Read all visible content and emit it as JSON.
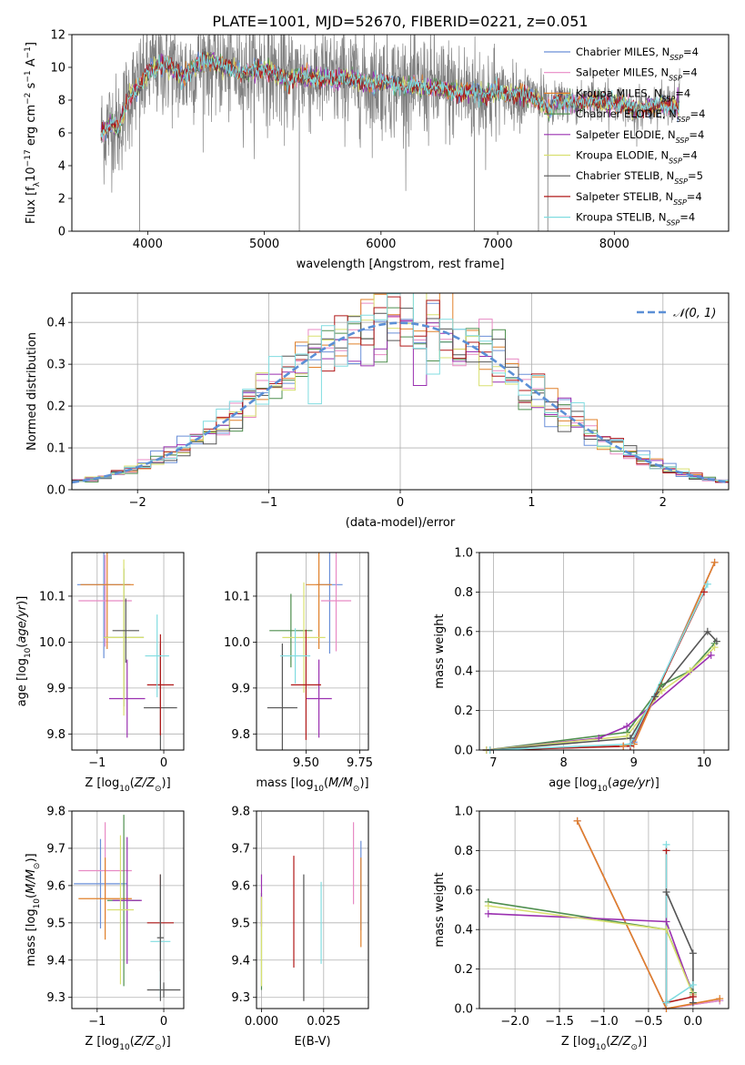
{
  "figure_title": "PLATE=1001, MJD=52670, FIBERID=0221, z=0.051",
  "colors": {
    "chabrier_miles": "#6a8fd8",
    "salpeter_miles": "#e88ac4",
    "kroupa_miles": "#e0802a",
    "chabrier_elodie": "#4f8f4f",
    "salpeter_elodie": "#9a30b0",
    "kroupa_elodie": "#d8e070",
    "chabrier_stelib": "#555555",
    "salpeter_stelib": "#b01818",
    "kroupa_stelib": "#80dce0",
    "data": "#808080",
    "gaussian": "#5b8fd6"
  },
  "chart_data": [
    {
      "id": "spectrum",
      "type": "line",
      "xlabel": "wavelength [Angstrom, rest frame]",
      "ylabel": "Flux [f_λ10^-17 erg cm^-2 s^-1 A^-1]",
      "xlim": [
        3350,
        8980
      ],
      "ylim": [
        0,
        12
      ],
      "xticks": [
        4000,
        5000,
        6000,
        7000,
        8000
      ],
      "yticks": [
        0,
        2,
        4,
        6,
        8,
        10,
        12
      ],
      "grid": false,
      "legend_position": "right",
      "legend": [
        {
          "label": "Chabrier MILES, N_SSP=4",
          "color_key": "chabrier_miles"
        },
        {
          "label": "Salpeter MILES, N_SSP=4",
          "color_key": "salpeter_miles"
        },
        {
          "label": "Kroupa MILES, N_SSP=4",
          "color_key": "kroupa_miles"
        },
        {
          "label": "Chabrier ELODIE, N_SSP=4",
          "color_key": "chabrier_elodie"
        },
        {
          "label": "Salpeter ELODIE, N_SSP=4",
          "color_key": "salpeter_elodie"
        },
        {
          "label": "Kroupa ELODIE, N_SSP=4",
          "color_key": "kroupa_elodie"
        },
        {
          "label": "Chabrier STELIB, N_SSP=5",
          "color_key": "chabrier_stelib"
        },
        {
          "label": "Salpeter STELIB, N_SSP=4",
          "color_key": "salpeter_stelib"
        },
        {
          "label": "Kroupa STELIB, N_SSP=4",
          "color_key": "kroupa_stelib"
        }
      ],
      "model_continuum": [
        [
          3600,
          6.0
        ],
        [
          3650,
          6.3
        ],
        [
          3700,
          6.6
        ],
        [
          3750,
          6.2
        ],
        [
          3800,
          7.4
        ],
        [
          3850,
          8.4
        ],
        [
          3900,
          8.6
        ],
        [
          3950,
          9.0
        ],
        [
          4000,
          9.6
        ],
        [
          4100,
          10.2
        ],
        [
          4200,
          10.0
        ],
        [
          4300,
          9.4
        ],
        [
          4400,
          10.0
        ],
        [
          4500,
          10.5
        ],
        [
          4600,
          10.2
        ],
        [
          4700,
          9.9
        ],
        [
          4800,
          9.7
        ],
        [
          4900,
          9.8
        ],
        [
          5000,
          10.0
        ],
        [
          5100,
          9.6
        ],
        [
          5200,
          9.2
        ],
        [
          5300,
          9.5
        ],
        [
          5400,
          9.3
        ],
        [
          5500,
          9.4
        ],
        [
          5600,
          9.2
        ],
        [
          5700,
          9.4
        ],
        [
          5800,
          9.2
        ],
        [
          5900,
          9.0
        ],
        [
          6000,
          9.1
        ],
        [
          6100,
          9.0
        ],
        [
          6200,
          8.9
        ],
        [
          6300,
          8.8
        ],
        [
          6400,
          8.8
        ],
        [
          6500,
          8.7
        ],
        [
          6600,
          8.6
        ],
        [
          6700,
          8.5
        ],
        [
          6800,
          8.5
        ],
        [
          6900,
          8.3
        ],
        [
          7000,
          8.5
        ],
        [
          7100,
          8.4
        ],
        [
          7200,
          8.3
        ],
        [
          7300,
          8.2
        ],
        [
          7400,
          7.7
        ],
        [
          7450,
          7.3
        ],
        [
          7500,
          8.0
        ],
        [
          7600,
          7.9
        ],
        [
          7700,
          7.8
        ],
        [
          7800,
          8.1
        ],
        [
          7900,
          7.8
        ],
        [
          8000,
          7.8
        ],
        [
          8100,
          7.7
        ],
        [
          8200,
          7.4
        ],
        [
          8300,
          7.6
        ],
        [
          8400,
          7.6
        ],
        [
          8500,
          7.7
        ],
        [
          8560,
          7.6
        ]
      ],
      "data_dropouts": [
        [
          3930,
          0
        ],
        [
          5300,
          0
        ],
        [
          6800,
          0
        ],
        [
          7350,
          0
        ],
        [
          7430,
          0
        ]
      ]
    },
    {
      "id": "residuals",
      "type": "line",
      "xlabel": "(data-model)/error",
      "ylabel": "Normed distribution",
      "xlim": [
        -2.5,
        2.5
      ],
      "ylim": [
        0,
        0.47
      ],
      "xticks": [
        -2,
        -1,
        0,
        1,
        2
      ],
      "yticks": [
        0.0,
        0.1,
        0.2,
        0.3,
        0.4
      ],
      "grid": true,
      "legend_position": "top-right",
      "legend": [
        {
          "label": "𝒩(0, 1)",
          "color_key": "gaussian"
        }
      ],
      "histogram_bin_width": 0.1,
      "curve": "normal_pdf_mean0_std1"
    },
    {
      "id": "age_vs_Z",
      "type": "scatter",
      "xlabel": "Z [log10(Z/Z☉)]",
      "ylabel": "age  [log10(age/yr)]",
      "xlim": [
        -1.38,
        0.3
      ],
      "ylim": [
        9.765,
        10.195
      ],
      "xticks": [
        -1,
        0
      ],
      "yticks": [
        9.8,
        9.9,
        10.0,
        10.1
      ],
      "grid": true,
      "points": [
        {
          "key": "chabrier_miles",
          "x": -0.9,
          "y": 10.125,
          "dx": 0.4,
          "dy": 0.16
        },
        {
          "key": "salpeter_miles",
          "x": -0.88,
          "y": 10.09,
          "dx": 0.4,
          "dy": 0.1
        },
        {
          "key": "kroupa_miles",
          "x": -0.85,
          "y": 10.125,
          "dx": 0.4,
          "dy": 0.14
        },
        {
          "key": "chabrier_elodie",
          "x": -0.6,
          "y": 10.01,
          "dx": 0.3,
          "dy": 0.15
        },
        {
          "key": "salpeter_elodie",
          "x": -0.55,
          "y": 9.877,
          "dx": 0.27,
          "dy": 0.085
        },
        {
          "key": "kroupa_elodie",
          "x": -0.6,
          "y": 10.01,
          "dx": 0.3,
          "dy": 0.17
        },
        {
          "key": "chabrier_stelib",
          "x": -0.05,
          "y": 9.857,
          "dx": 0.25,
          "dy": 0.14
        },
        {
          "key": "salpeter_stelib",
          "x": -0.05,
          "y": 9.907,
          "dx": 0.2,
          "dy": 0.11
        },
        {
          "key": "kroupa_stelib",
          "x": -0.1,
          "y": 9.97,
          "dx": 0.18,
          "dy": 0.09
        },
        {
          "key": "chabrier_stelib",
          "x": -0.57,
          "y": 10.025,
          "dx": 0.2,
          "dy": 0.07
        }
      ]
    },
    {
      "id": "age_vs_mass",
      "type": "scatter",
      "xlabel": "mass [log10(M/M☉)]",
      "ylabel": "",
      "xlim": [
        9.27,
        9.79
      ],
      "ylim": [
        9.765,
        10.195
      ],
      "xticks": [
        9.5,
        9.75
      ],
      "yticks": [
        9.8,
        9.9,
        10.0,
        10.1
      ],
      "grid": true,
      "points": [
        {
          "key": "chabrier_miles",
          "x": 9.61,
          "y": 10.125,
          "dx": 0.06,
          "dy": 0.15
        },
        {
          "key": "salpeter_miles",
          "x": 9.64,
          "y": 10.09,
          "dx": 0.07,
          "dy": 0.11
        },
        {
          "key": "kroupa_miles",
          "x": 9.56,
          "y": 10.125,
          "dx": 0.06,
          "dy": 0.14
        },
        {
          "key": "chabrier_elodie",
          "x": 9.43,
          "y": 10.025,
          "dx": 0.1,
          "dy": 0.08
        },
        {
          "key": "salpeter_elodie",
          "x": 9.56,
          "y": 9.877,
          "dx": 0.06,
          "dy": 0.085
        },
        {
          "key": "kroupa_elodie",
          "x": 9.49,
          "y": 10.01,
          "dx": 0.1,
          "dy": 0.12
        },
        {
          "key": "chabrier_stelib",
          "x": 9.39,
          "y": 9.857,
          "dx": 0.07,
          "dy": 0.14
        },
        {
          "key": "salpeter_stelib",
          "x": 9.5,
          "y": 9.907,
          "dx": 0.07,
          "dy": 0.12
        },
        {
          "key": "kroupa_stelib",
          "x": 9.45,
          "y": 9.97,
          "dx": 0.07,
          "dy": 0.06
        }
      ]
    },
    {
      "id": "massweight_vs_age",
      "type": "line",
      "xlabel": "age  [log10(age/yr)]",
      "ylabel": "mass weight",
      "xlim": [
        6.8,
        10.35
      ],
      "ylim": [
        0,
        1
      ],
      "xticks": [
        7,
        8,
        9,
        10
      ],
      "yticks": [
        0.0,
        0.2,
        0.4,
        0.6,
        0.8,
        1.0
      ],
      "grid": true,
      "series": [
        {
          "key": "chabrier_miles",
          "x": [
            6.9,
            8.85,
            9.0,
            10.15
          ],
          "y": [
            0.0,
            0.02,
            0.04,
            0.95
          ]
        },
        {
          "key": "salpeter_miles",
          "x": [
            6.9,
            8.85,
            9.0,
            10.15
          ],
          "y": [
            0.0,
            0.02,
            0.03,
            0.95
          ]
        },
        {
          "key": "kroupa_miles",
          "x": [
            6.9,
            8.85,
            9.0,
            10.15
          ],
          "y": [
            0.0,
            0.02,
            0.03,
            0.95
          ]
        },
        {
          "key": "chabrier_elodie",
          "x": [
            6.9,
            8.9,
            9.4,
            9.8,
            10.15
          ],
          "y": [
            0.0,
            0.09,
            0.33,
            0.4,
            0.54
          ]
        },
        {
          "key": "salpeter_elodie",
          "x": [
            6.9,
            8.5,
            8.9,
            10.1
          ],
          "y": [
            0.0,
            0.06,
            0.12,
            0.48
          ]
        },
        {
          "key": "kroupa_elodie",
          "x": [
            6.9,
            8.9,
            9.4,
            9.8,
            10.15
          ],
          "y": [
            0.0,
            0.07,
            0.3,
            0.4,
            0.52
          ]
        },
        {
          "key": "chabrier_stelib",
          "x": [
            6.95,
            8.95,
            9.3,
            10.05,
            10.18
          ],
          "y": [
            0.0,
            0.06,
            0.27,
            0.6,
            0.55
          ]
        },
        {
          "key": "salpeter_stelib",
          "x": [
            6.95,
            8.95,
            10.0
          ],
          "y": [
            0.0,
            0.02,
            0.8
          ]
        },
        {
          "key": "kroupa_stelib",
          "x": [
            6.95,
            8.95,
            10.05
          ],
          "y": [
            0.0,
            0.03,
            0.84
          ]
        }
      ]
    },
    {
      "id": "mass_vs_Z",
      "type": "scatter",
      "xlabel": "Z [log10(Z/Z☉)]",
      "ylabel": "mass [log10(M/M☉)]",
      "xlim": [
        -1.38,
        0.3
      ],
      "ylim": [
        9.27,
        9.8
      ],
      "xticks": [
        -1,
        0
      ],
      "yticks": [
        9.3,
        9.4,
        9.5,
        9.6,
        9.7,
        9.8
      ],
      "grid": true,
      "points": [
        {
          "key": "chabrier_miles",
          "x": -0.95,
          "y": 9.605,
          "dx": 0.4,
          "dy": 0.12
        },
        {
          "key": "salpeter_miles",
          "x": -0.88,
          "y": 9.64,
          "dx": 0.4,
          "dy": 0.13
        },
        {
          "key": "kroupa_miles",
          "x": -0.88,
          "y": 9.565,
          "dx": 0.4,
          "dy": 0.11
        },
        {
          "key": "chabrier_elodie",
          "x": -0.6,
          "y": 9.56,
          "dx": 0.25,
          "dy": 0.23
        },
        {
          "key": "salpeter_elodie",
          "x": -0.55,
          "y": 9.56,
          "dx": 0.22,
          "dy": 0.17
        },
        {
          "key": "kroupa_elodie",
          "x": -0.65,
          "y": 9.535,
          "dx": 0.2,
          "dy": 0.2
        },
        {
          "key": "chabrier_stelib",
          "x": 0.0,
          "y": 9.32,
          "dx": 0.25,
          "dy": 0.02
        },
        {
          "key": "salpeter_stelib",
          "x": -0.05,
          "y": 9.5,
          "dx": 0.2,
          "dy": 0.13
        },
        {
          "key": "kroupa_stelib",
          "x": -0.05,
          "y": 9.45,
          "dx": 0.15,
          "dy": 0.15
        },
        {
          "key": "chabrier_stelib",
          "x": -0.05,
          "y": 9.46,
          "dx": 0.05,
          "dy": 0.17
        }
      ]
    },
    {
      "id": "mass_vs_ebv",
      "type": "scatter",
      "xlabel": "E(B-V)",
      "ylabel": "",
      "xlim": [
        -0.002,
        0.043
      ],
      "ylim": [
        9.27,
        9.8
      ],
      "xticks": [
        0.0,
        0.025
      ],
      "xtick_labels": [
        "0.000",
        "0.025"
      ],
      "yticks": [
        9.3,
        9.4,
        9.5,
        9.6,
        9.7,
        9.8
      ],
      "grid": true,
      "points": [
        {
          "key": "chabrier_miles",
          "x": 0.04,
          "y": 9.6,
          "dy": 0.12
        },
        {
          "key": "salpeter_miles",
          "x": 0.037,
          "y": 9.66,
          "dy": 0.11
        },
        {
          "key": "kroupa_miles",
          "x": 0.04,
          "y": 9.555,
          "dy": 0.12
        },
        {
          "key": "chabrier_elodie",
          "x": 0.0,
          "y": 9.45,
          "dy": 0.13
        },
        {
          "key": "salpeter_elodie",
          "x": 0.0,
          "y": 9.56,
          "dy": 0.07
        },
        {
          "key": "kroupa_elodie",
          "x": 0.0,
          "y": 9.45,
          "dy": 0.12
        },
        {
          "key": "chabrier_stelib",
          "x": 0.017,
          "y": 9.46,
          "dy": 0.17
        },
        {
          "key": "salpeter_stelib",
          "x": 0.013,
          "y": 9.53,
          "dy": 0.15
        },
        {
          "key": "kroupa_stelib",
          "x": 0.024,
          "y": 9.5,
          "dy": 0.11
        }
      ]
    },
    {
      "id": "massweight_vs_Z",
      "type": "line",
      "xlabel": "Z [log10(Z/Z☉)]",
      "ylabel": "mass weight",
      "xlim": [
        -2.4,
        0.4
      ],
      "ylim": [
        0,
        1
      ],
      "xticks": [
        -2.0,
        -1.5,
        -1.0,
        -0.5,
        0.0
      ],
      "yticks": [
        0.0,
        0.2,
        0.4,
        0.6,
        0.8,
        1.0
      ],
      "grid": true,
      "series": [
        {
          "key": "chabrier_miles",
          "x": [
            -1.3,
            -0.3,
            0.3
          ],
          "y": [
            0.95,
            0.0,
            0.04
          ]
        },
        {
          "key": "salpeter_miles",
          "x": [
            -1.3,
            -0.3,
            0.3
          ],
          "y": [
            0.95,
            0.0,
            0.04
          ]
        },
        {
          "key": "kroupa_miles",
          "x": [
            -1.3,
            -0.3,
            0.3
          ],
          "y": [
            0.95,
            0.0,
            0.05
          ]
        },
        {
          "key": "chabrier_elodie",
          "x": [
            -2.3,
            -0.3,
            0.0
          ],
          "y": [
            0.54,
            0.4,
            0.08
          ]
        },
        {
          "key": "salpeter_elodie",
          "x": [
            -2.3,
            -0.3,
            0.0
          ],
          "y": [
            0.48,
            0.44,
            0.07
          ]
        },
        {
          "key": "kroupa_elodie",
          "x": [
            -2.3,
            -0.3,
            0.0
          ],
          "y": [
            0.52,
            0.4,
            0.07
          ]
        },
        {
          "key": "chabrier_stelib",
          "x": [
            -0.3,
            -0.3,
            0.0,
            0.0
          ],
          "y": [
            0.03,
            0.59,
            0.28,
            0.03
          ]
        },
        {
          "key": "salpeter_stelib",
          "x": [
            -0.3,
            -0.3,
            0.0
          ],
          "y": [
            0.8,
            0.03,
            0.06
          ]
        },
        {
          "key": "kroupa_stelib",
          "x": [
            -0.3,
            -0.3,
            0.0
          ],
          "y": [
            0.83,
            0.03,
            0.12
          ]
        }
      ]
    }
  ]
}
